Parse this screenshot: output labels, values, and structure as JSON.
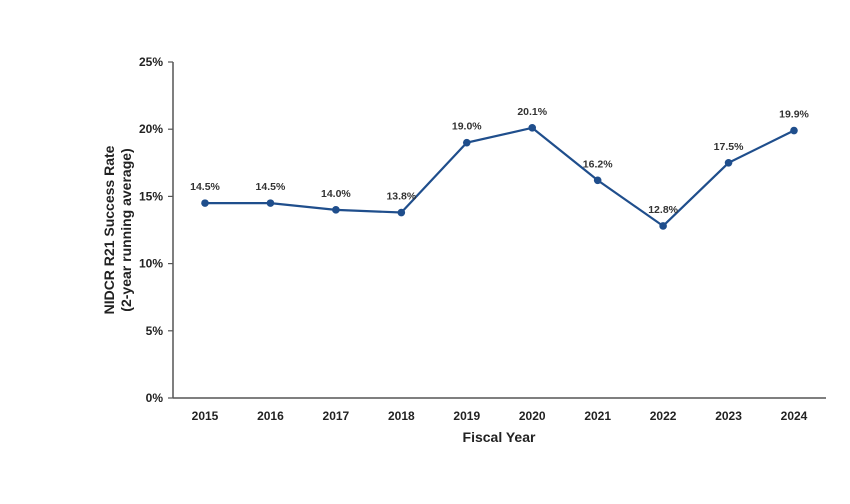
{
  "chart_data": {
    "type": "line",
    "title": "",
    "xlabel": "Fiscal Year",
    "ylabel_lines": [
      "NIDCR R21 Success Rate",
      "(2-year running average)"
    ],
    "categories": [
      "2015",
      "2016",
      "2017",
      "2018",
      "2019",
      "2020",
      "2021",
      "2022",
      "2023",
      "2024"
    ],
    "series": [
      {
        "name": "NIDCR R21 Success Rate",
        "values": [
          14.5,
          14.5,
          14.0,
          13.8,
          19.0,
          20.1,
          16.2,
          12.8,
          17.5,
          19.9
        ],
        "color": "#1f4e8c"
      }
    ],
    "data_labels": [
      "14.5%",
      "14.5%",
      "14.0%",
      "13.8%",
      "19.0%",
      "20.1%",
      "16.2%",
      "12.8%",
      "17.5%",
      "19.9%"
    ],
    "ylim": [
      0,
      25
    ],
    "yticks": [
      0,
      5,
      10,
      15,
      20,
      25
    ],
    "ytick_labels": [
      "0%",
      "5%",
      "10%",
      "15%",
      "20%",
      "25%"
    ],
    "grid": false,
    "legend": "none"
  }
}
